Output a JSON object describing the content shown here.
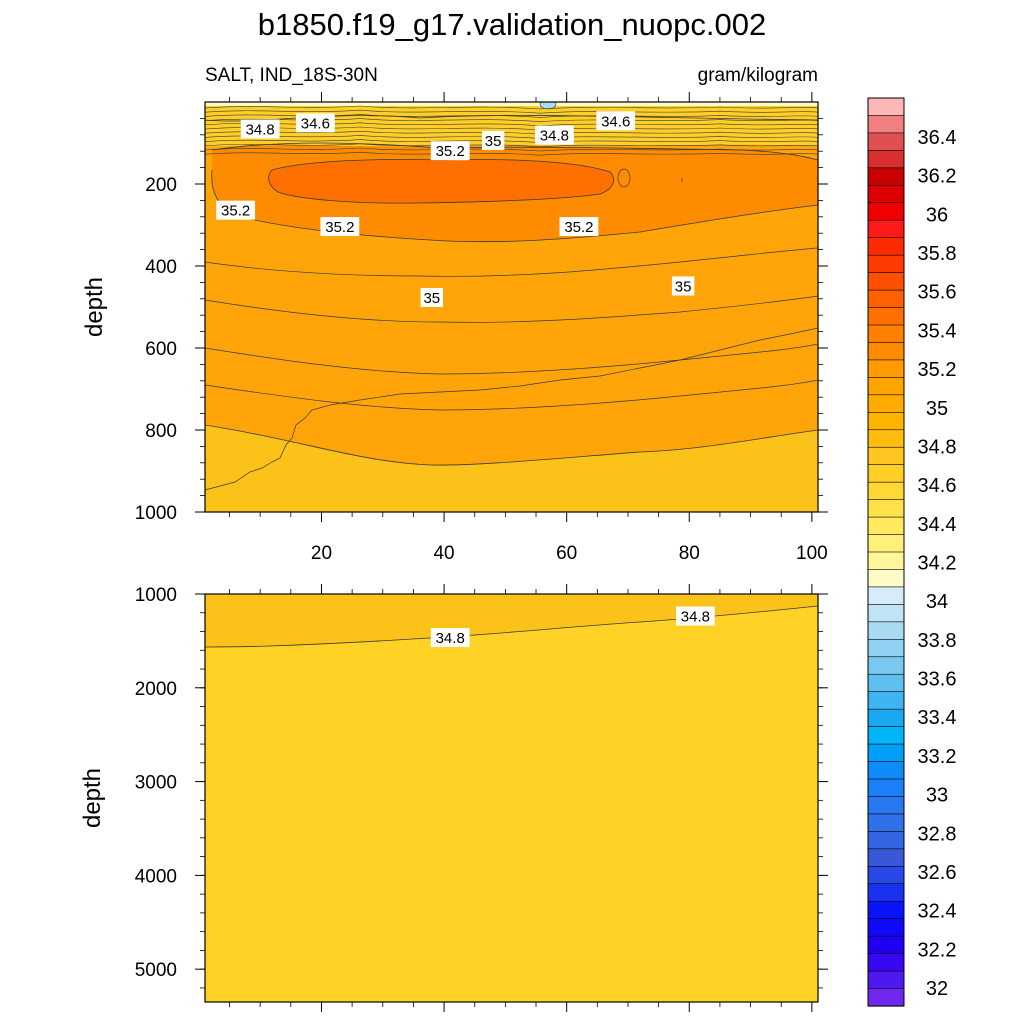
{
  "chart_data": {
    "type": "contour",
    "title": "b1850.f19_g17.validation_nuopc.002",
    "left_subtitle": "SALT, IND_18S-30N",
    "right_subtitle": "gram/kilogram",
    "ylabel": "depth",
    "x_ticks": [
      "20",
      "40",
      "60",
      "80",
      "100"
    ],
    "x_tick_values": [
      20,
      40,
      60,
      80,
      100
    ],
    "xlim": [
      1,
      101
    ],
    "upper_panel": {
      "ylim": [
        1000,
        0
      ],
      "y_ticks": [
        "200",
        "400",
        "600",
        "800",
        "1000"
      ],
      "y_tick_values": [
        200,
        400,
        600,
        800,
        1000
      ],
      "contour_labels": [
        {
          "text": "34.8",
          "x": 10,
          "y": 67
        },
        {
          "text": "34.6",
          "x": 19,
          "y": 52
        },
        {
          "text": "35",
          "x": 48,
          "y": 95
        },
        {
          "text": "34.8",
          "x": 58,
          "y": 82
        },
        {
          "text": "34.6",
          "x": 68,
          "y": 47
        },
        {
          "text": "35.2",
          "x": 41,
          "y": 120
        },
        {
          "text": "35.2",
          "x": 6,
          "y": 265
        },
        {
          "text": "35.2",
          "x": 23,
          "y": 305
        },
        {
          "text": "35.2",
          "x": 62,
          "y": 305
        },
        {
          "text": "35",
          "x": 38,
          "y": 478
        },
        {
          "text": "35",
          "x": 79,
          "y": 450
        }
      ]
    },
    "lower_panel": {
      "ylim": [
        5350,
        1000
      ],
      "y_ticks": [
        "1000",
        "2000",
        "3000",
        "4000",
        "5000"
      ],
      "y_tick_values": [
        1000,
        2000,
        3000,
        4000,
        5000
      ],
      "contour_labels": [
        {
          "text": "34.8",
          "x": 41,
          "y": 1470
        },
        {
          "text": "34.8",
          "x": 81,
          "y": 1240
        }
      ]
    },
    "colorbar": {
      "labels": [
        "36.4",
        "36.2",
        "36",
        "35.8",
        "35.6",
        "35.4",
        "35.2",
        "35",
        "34.8",
        "34.6",
        "34.4",
        "34.2",
        "34",
        "33.8",
        "33.6",
        "33.4",
        "33.2",
        "33",
        "32.8",
        "32.6",
        "32.4",
        "32.2",
        "32"
      ],
      "colors": [
        "#fdb7b7",
        "#f08080",
        "#e05050",
        "#d83030",
        "#c80000",
        "#dc0000",
        "#f00000",
        "#ff1a1a",
        "#ff2a00",
        "#ff3c00",
        "#ff5000",
        "#ff6000",
        "#ff7000",
        "#ff7f00",
        "#ff8c00",
        "#ff9a00",
        "#ffa500",
        "#ffab00",
        "#ffb400",
        "#ffbc10",
        "#ffc520",
        "#ffcf28",
        "#ffd835",
        "#ffe24a",
        "#ffe95e",
        "#fff07a",
        "#fff59a",
        "#fffbc8",
        "#d6ecf8",
        "#c0e4f4",
        "#a8daf2",
        "#90d0f0",
        "#78c8f0",
        "#5ec0f0",
        "#40b4f0",
        "#1aa8f0",
        "#00b4f8",
        "#00a0f8",
        "#108cf8",
        "#1e80f8",
        "#2878f0",
        "#3070e8",
        "#3464e0",
        "#3858d8",
        "#2848e8",
        "#1a32f0",
        "#0a14f8",
        "#1008f8",
        "#2000f0",
        "#3808f0",
        "#5018f0",
        "#7028f0"
      ]
    }
  }
}
